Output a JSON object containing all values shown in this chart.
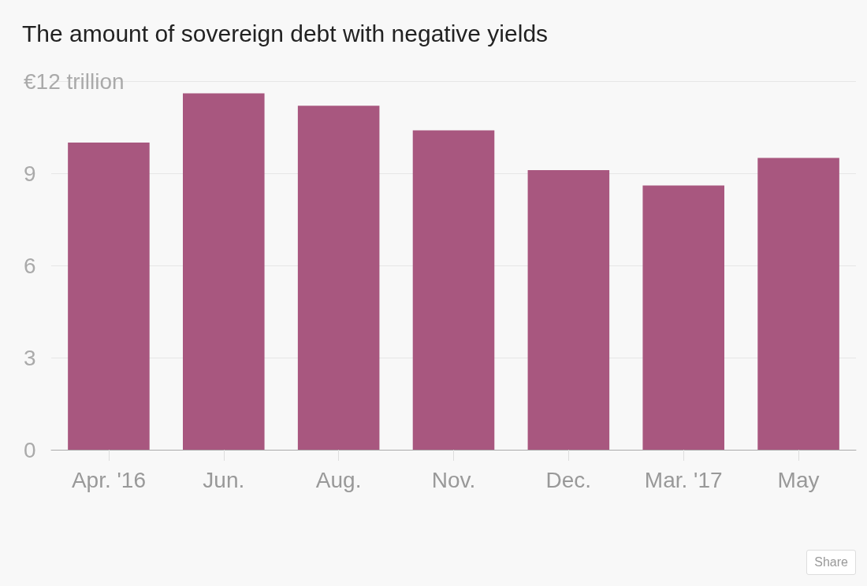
{
  "chart_data": {
    "type": "bar",
    "title": "The amount of sovereign debt with negative yields",
    "categories": [
      "Apr. '16",
      "Jun.",
      "Aug.",
      "Nov.",
      "Dec.",
      "Mar. '17",
      "May"
    ],
    "values": [
      10.0,
      11.6,
      11.2,
      10.4,
      9.1,
      8.6,
      9.5
    ],
    "color": "#a8577f",
    "ylim": [
      0,
      12
    ],
    "yticks": [
      0,
      3,
      6,
      9,
      {
        "value": 12,
        "label": "€12 trillion"
      }
    ],
    "grid": "y",
    "annotations": [
      "Share"
    ]
  }
}
